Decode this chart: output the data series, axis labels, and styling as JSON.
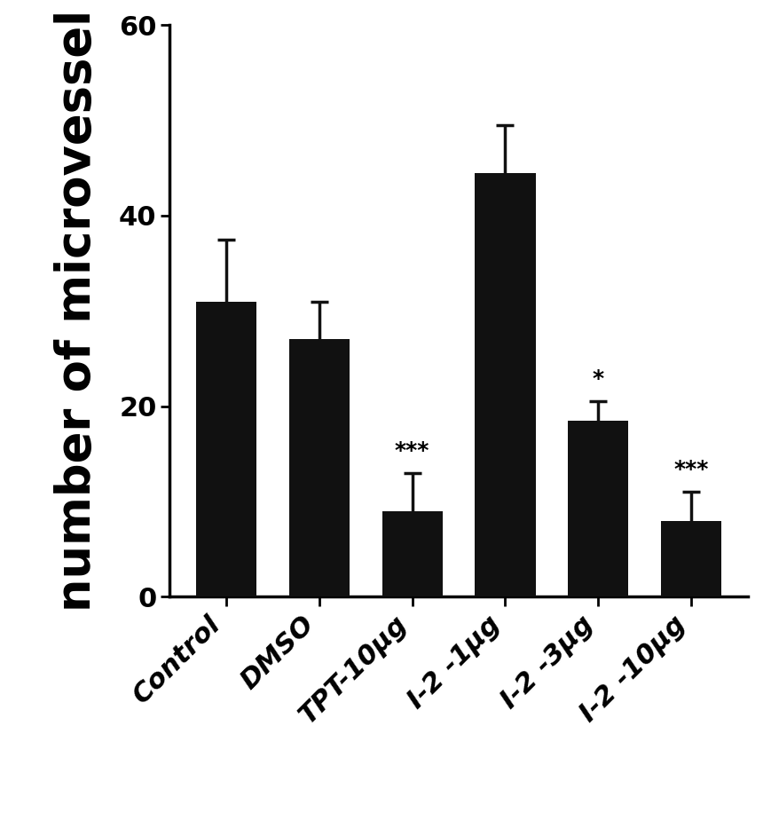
{
  "categories": [
    "Control",
    "DMSO",
    "TPT-10μg",
    "I-2 -1μg",
    "I-2 -3μg",
    "I-2 -10μg"
  ],
  "values": [
    31.0,
    27.0,
    9.0,
    44.5,
    18.5,
    8.0
  ],
  "errors": [
    6.5,
    4.0,
    4.0,
    5.0,
    2.0,
    3.0
  ],
  "significance": [
    "",
    "",
    "***",
    "",
    "*",
    "***"
  ],
  "bar_color": "#111111",
  "error_color": "#111111",
  "ylabel": "number of microvessel",
  "ylim": [
    0,
    60
  ],
  "yticks": [
    0,
    20,
    40,
    60
  ],
  "bar_width": 0.65,
  "background_color": "#ffffff",
  "sig_fontsize": 18,
  "ylabel_fontsize": 38,
  "ytick_fontsize": 22,
  "xtick_fontsize": 22
}
